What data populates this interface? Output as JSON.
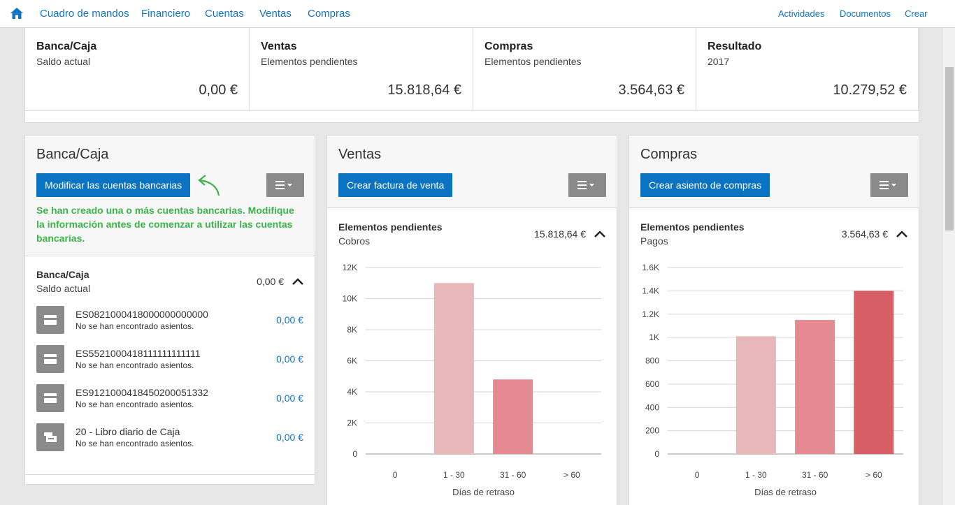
{
  "nav": {
    "home_icon": "home-icon",
    "left": [
      "Cuadro de mandos",
      "Financiero",
      "Cuentas",
      "Ventas",
      "Compras"
    ],
    "right": [
      "Actividades",
      "Documentos",
      "Crear"
    ]
  },
  "kpis": [
    {
      "title": "Banca/Caja",
      "subtitle": "Saldo actual",
      "value": "0,00 €"
    },
    {
      "title": "Ventas",
      "subtitle": "Elementos pendientes",
      "value": "15.818,64 €"
    },
    {
      "title": "Compras",
      "subtitle": "Elementos pendientes",
      "value": "3.564,63 €"
    },
    {
      "title": "Resultado",
      "subtitle": "2017",
      "value": "10.279,52 €"
    }
  ],
  "bank": {
    "title": "Banca/Caja",
    "button": "Modificar las cuentas bancarias",
    "notice": "Se han creado una o más cuentas bancarias. Modifique la información antes de comenzar a utilizar las cuentas bancarias.",
    "section_title": "Banca/Caja",
    "section_sub": "Saldo actual",
    "section_value": "0,00 €",
    "accounts": [
      {
        "name": "ES0821000418000000000000",
        "note": "No se han encontrado asientos.",
        "balance": "0,00 €",
        "icon": "credit-card-icon"
      },
      {
        "name": "ES5521000418111111111111",
        "note": "No se han encontrado asientos.",
        "balance": "0,00 €",
        "icon": "credit-card-icon"
      },
      {
        "name": "ES9121000418450200051332",
        "note": "No se han encontrado asientos.",
        "balance": "0,00 €",
        "icon": "credit-card-icon"
      },
      {
        "name": "20 - Libro diario de Caja",
        "note": "No se han encontrado asientos.",
        "balance": "0,00 €",
        "icon": "cash-register-icon"
      }
    ]
  },
  "sales": {
    "title": "Ventas",
    "button": "Crear factura de venta",
    "section_title": "Elementos pendientes",
    "section_sub": "Cobros",
    "section_value": "15.818,64 €"
  },
  "purchases": {
    "title": "Compras",
    "button": "Crear asiento de compras",
    "section_title": "Elementos pendientes",
    "section_sub": "Pagos",
    "section_value": "3.564,63 €"
  },
  "colors": {
    "accent": "#0b73c2",
    "notice": "#3cb54a",
    "bar1": "#e8b7b9",
    "bar2": "#e68a91",
    "bar3": "#d65e64"
  },
  "chart_data": [
    {
      "type": "bar",
      "categories": [
        "0",
        "1 - 30",
        "31 - 60",
        "> 60"
      ],
      "values": [
        0,
        11000,
        4800,
        0
      ],
      "yticks": [
        "0",
        "2K",
        "4K",
        "6K",
        "8K",
        "10K",
        "12K"
      ],
      "ylim": [
        0,
        12000
      ],
      "xlabel": "Días de retraso",
      "grid": true
    },
    {
      "type": "bar",
      "categories": [
        "0",
        "1 - 30",
        "31 - 60",
        "> 60"
      ],
      "values": [
        0,
        1010,
        1150,
        1400
      ],
      "yticks": [
        "0",
        "200",
        "400",
        "600",
        "800",
        "1K",
        "1.2K",
        "1.4K",
        "1.6K"
      ],
      "ylim": [
        0,
        1600
      ],
      "xlabel": "Días de retraso",
      "grid": true
    }
  ]
}
